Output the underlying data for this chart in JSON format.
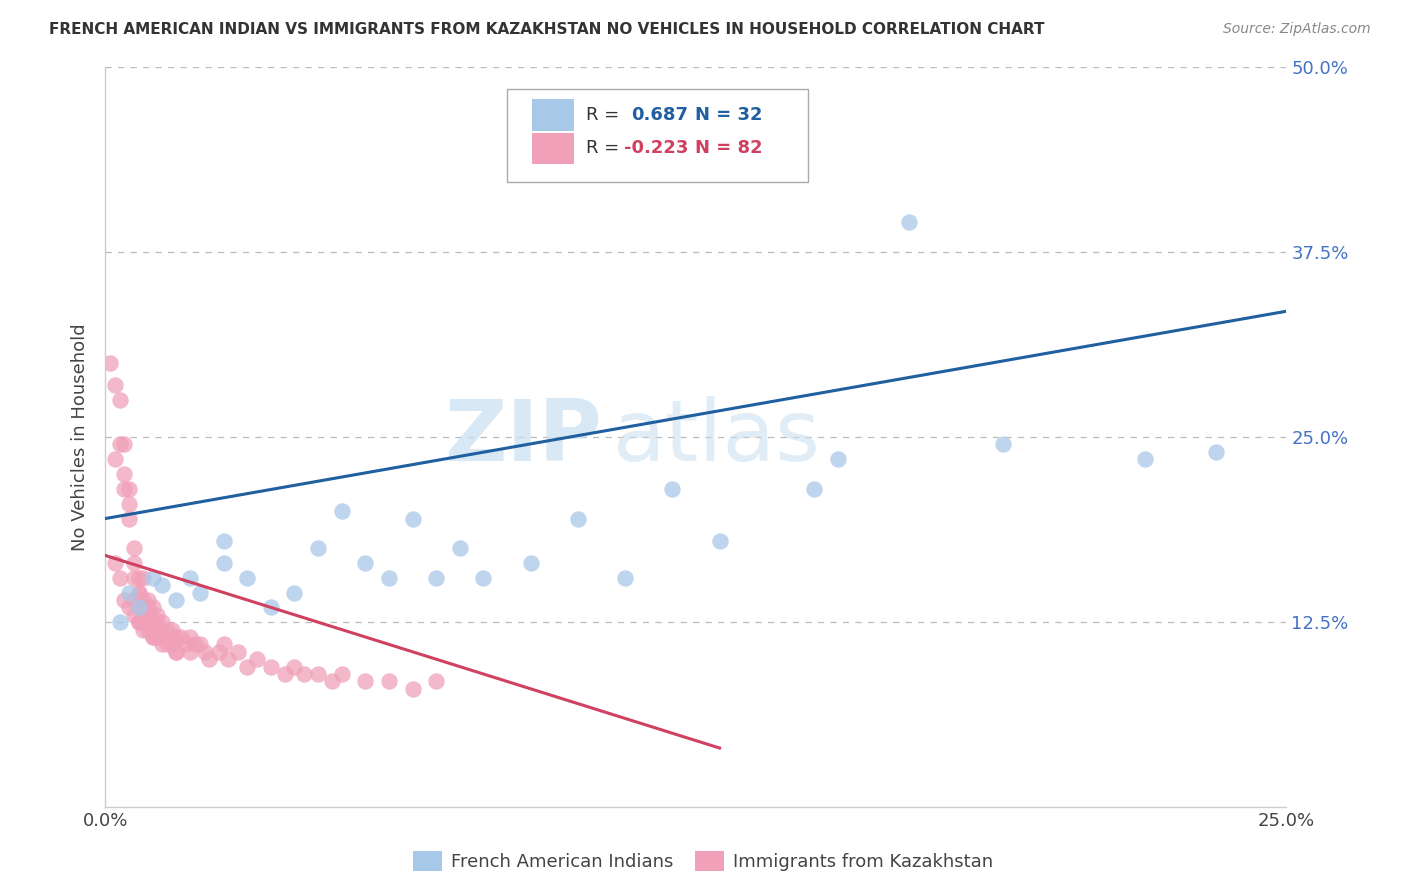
{
  "title": "FRENCH AMERICAN INDIAN VS IMMIGRANTS FROM KAZAKHSTAN NO VEHICLES IN HOUSEHOLD CORRELATION CHART",
  "source": "Source: ZipAtlas.com",
  "ylabel": "No Vehicles in Household",
  "legend_label1": "French American Indians",
  "legend_label2": "Immigrants from Kazakhstan",
  "color_blue": "#a8c8e8",
  "color_pink": "#f0a0b8",
  "color_blue_dark": "#2060a0",
  "color_pink_dark": "#d04060",
  "watermark_zip": "ZIP",
  "watermark_atlas": "atlas",
  "xlim": [
    0.0,
    0.25
  ],
  "ylim": [
    0.0,
    0.5
  ],
  "blue_scatter_x": [
    0.003,
    0.005,
    0.007,
    0.01,
    0.012,
    0.015,
    0.018,
    0.02,
    0.025,
    0.025,
    0.03,
    0.035,
    0.04,
    0.045,
    0.05,
    0.055,
    0.06,
    0.065,
    0.07,
    0.075,
    0.08,
    0.09,
    0.1,
    0.11,
    0.12,
    0.13,
    0.15,
    0.155,
    0.17,
    0.19,
    0.22,
    0.235
  ],
  "blue_scatter_y": [
    0.125,
    0.145,
    0.135,
    0.155,
    0.15,
    0.14,
    0.155,
    0.145,
    0.18,
    0.165,
    0.155,
    0.135,
    0.145,
    0.175,
    0.2,
    0.165,
    0.155,
    0.195,
    0.155,
    0.175,
    0.155,
    0.165,
    0.195,
    0.155,
    0.215,
    0.18,
    0.215,
    0.235,
    0.395,
    0.245,
    0.235,
    0.24
  ],
  "pink_scatter_x": [
    0.001,
    0.002,
    0.002,
    0.003,
    0.003,
    0.004,
    0.004,
    0.004,
    0.005,
    0.005,
    0.005,
    0.006,
    0.006,
    0.006,
    0.006,
    0.007,
    0.007,
    0.007,
    0.007,
    0.007,
    0.008,
    0.008,
    0.008,
    0.008,
    0.009,
    0.009,
    0.009,
    0.009,
    0.01,
    0.01,
    0.01,
    0.01,
    0.011,
    0.011,
    0.011,
    0.012,
    0.012,
    0.013,
    0.013,
    0.014,
    0.014,
    0.015,
    0.015,
    0.016,
    0.017,
    0.018,
    0.018,
    0.019,
    0.02,
    0.021,
    0.022,
    0.024,
    0.025,
    0.026,
    0.028,
    0.03,
    0.032,
    0.035,
    0.038,
    0.04,
    0.042,
    0.045,
    0.048,
    0.05,
    0.055,
    0.06,
    0.065,
    0.07,
    0.002,
    0.003,
    0.004,
    0.005,
    0.006,
    0.007,
    0.008,
    0.009,
    0.01,
    0.011,
    0.012,
    0.013,
    0.014,
    0.015
  ],
  "pink_scatter_y": [
    0.3,
    0.285,
    0.235,
    0.275,
    0.245,
    0.245,
    0.225,
    0.215,
    0.205,
    0.195,
    0.215,
    0.175,
    0.165,
    0.155,
    0.14,
    0.155,
    0.145,
    0.135,
    0.125,
    0.145,
    0.135,
    0.125,
    0.14,
    0.155,
    0.13,
    0.125,
    0.135,
    0.14,
    0.125,
    0.135,
    0.12,
    0.115,
    0.13,
    0.12,
    0.125,
    0.125,
    0.115,
    0.12,
    0.115,
    0.115,
    0.12,
    0.115,
    0.105,
    0.115,
    0.11,
    0.105,
    0.115,
    0.11,
    0.11,
    0.105,
    0.1,
    0.105,
    0.11,
    0.1,
    0.105,
    0.095,
    0.1,
    0.095,
    0.09,
    0.095,
    0.09,
    0.09,
    0.085,
    0.09,
    0.085,
    0.085,
    0.08,
    0.085,
    0.165,
    0.155,
    0.14,
    0.135,
    0.13,
    0.125,
    0.12,
    0.12,
    0.115,
    0.115,
    0.11,
    0.11,
    0.11,
    0.105
  ],
  "blue_line_x": [
    0.0,
    0.25
  ],
  "blue_line_y": [
    0.195,
    0.335
  ],
  "pink_line_x": [
    -0.005,
    0.13
  ],
  "pink_line_y": [
    0.175,
    0.04
  ]
}
